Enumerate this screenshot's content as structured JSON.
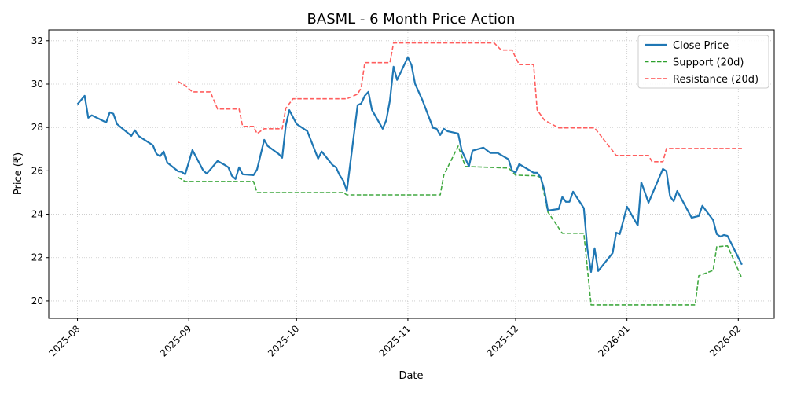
{
  "chart_data": {
    "type": "line",
    "title": "BASML - 6 Month Price Action",
    "xlabel": "Date",
    "ylabel": "Price (₹)",
    "xlim": [
      "2025-07-24",
      "2026-02-11"
    ],
    "ylim": [
      19.2,
      32.5
    ],
    "grid": true,
    "legend_position": "top-right",
    "x_ticks": [
      "2025-08",
      "2025-09",
      "2025-10",
      "2025-11",
      "2025-12",
      "2026-01",
      "2026-02"
    ],
    "y_ticks": [
      20,
      22,
      24,
      26,
      28,
      30,
      32
    ],
    "series": [
      {
        "name": "Close Price",
        "color": "#1f77b4",
        "style": "solid",
        "points": [
          [
            "2025-08-01",
            29.07
          ],
          [
            "2025-08-03",
            29.46
          ],
          [
            "2025-08-04",
            28.45
          ],
          [
            "2025-08-05",
            28.56
          ],
          [
            "2025-08-09",
            28.23
          ],
          [
            "2025-08-10",
            28.7
          ],
          [
            "2025-08-11",
            28.63
          ],
          [
            "2025-08-12",
            28.16
          ],
          [
            "2025-08-16",
            27.61
          ],
          [
            "2025-08-17",
            27.87
          ],
          [
            "2025-08-18",
            27.61
          ],
          [
            "2025-08-22",
            27.18
          ],
          [
            "2025-08-23",
            26.78
          ],
          [
            "2025-08-24",
            26.67
          ],
          [
            "2025-08-25",
            26.89
          ],
          [
            "2025-08-26",
            26.38
          ],
          [
            "2025-08-29",
            25.98
          ],
          [
            "2025-08-30",
            25.95
          ],
          [
            "2025-08-31",
            25.84
          ],
          [
            "2025-09-02",
            26.96
          ],
          [
            "2025-09-05",
            26.02
          ],
          [
            "2025-09-06",
            25.87
          ],
          [
            "2025-09-07",
            26.06
          ],
          [
            "2025-09-09",
            26.45
          ],
          [
            "2025-09-11",
            26.27
          ],
          [
            "2025-09-12",
            26.16
          ],
          [
            "2025-09-13",
            25.77
          ],
          [
            "2025-09-14",
            25.62
          ],
          [
            "2025-09-15",
            26.16
          ],
          [
            "2025-09-16",
            25.84
          ],
          [
            "2025-09-19",
            25.8
          ],
          [
            "2025-09-20",
            26.06
          ],
          [
            "2025-09-22",
            27.43
          ],
          [
            "2025-09-23",
            27.14
          ],
          [
            "2025-09-26",
            26.78
          ],
          [
            "2025-09-27",
            26.6
          ],
          [
            "2025-09-28",
            28.09
          ],
          [
            "2025-09-29",
            28.8
          ],
          [
            "2025-10-01",
            28.16
          ],
          [
            "2025-10-04",
            27.83
          ],
          [
            "2025-10-07",
            26.56
          ],
          [
            "2025-10-08",
            26.89
          ],
          [
            "2025-10-11",
            26.27
          ],
          [
            "2025-10-12",
            26.16
          ],
          [
            "2025-10-13",
            25.8
          ],
          [
            "2025-10-14",
            25.55
          ],
          [
            "2025-10-15",
            25.08
          ],
          [
            "2025-10-18",
            29.03
          ],
          [
            "2025-10-19",
            29.1
          ],
          [
            "2025-10-20",
            29.46
          ],
          [
            "2025-10-21",
            29.64
          ],
          [
            "2025-10-22",
            28.81
          ],
          [
            "2025-10-25",
            27.94
          ],
          [
            "2025-10-26",
            28.34
          ],
          [
            "2025-10-27",
            29.25
          ],
          [
            "2025-10-28",
            30.8
          ],
          [
            "2025-10-29",
            30.19
          ],
          [
            "2025-11-01",
            31.24
          ],
          [
            "2025-11-02",
            30.88
          ],
          [
            "2025-11-03",
            30.01
          ],
          [
            "2025-11-05",
            29.28
          ],
          [
            "2025-11-08",
            27.98
          ],
          [
            "2025-11-09",
            27.94
          ],
          [
            "2025-11-10",
            27.65
          ],
          [
            "2025-11-11",
            27.94
          ],
          [
            "2025-11-12",
            27.83
          ],
          [
            "2025-11-15",
            27.72
          ],
          [
            "2025-11-16",
            26.93
          ],
          [
            "2025-11-18",
            26.2
          ],
          [
            "2025-11-19",
            26.93
          ],
          [
            "2025-11-22",
            27.07
          ],
          [
            "2025-11-24",
            26.82
          ],
          [
            "2025-11-26",
            26.82
          ],
          [
            "2025-11-29",
            26.53
          ],
          [
            "2025-11-30",
            26.02
          ],
          [
            "2025-12-01",
            25.91
          ],
          [
            "2025-12-02",
            26.31
          ],
          [
            "2025-12-06",
            25.91
          ],
          [
            "2025-12-07",
            25.91
          ],
          [
            "2025-12-08",
            25.69
          ],
          [
            "2025-12-09",
            25.11
          ],
          [
            "2025-12-10",
            24.17
          ],
          [
            "2025-12-13",
            24.24
          ],
          [
            "2025-12-14",
            24.79
          ],
          [
            "2025-12-15",
            24.57
          ],
          [
            "2025-12-16",
            24.57
          ],
          [
            "2025-12-17",
            25.04
          ],
          [
            "2025-12-20",
            24.28
          ],
          [
            "2025-12-21",
            22.39
          ],
          [
            "2025-12-22",
            21.34
          ],
          [
            "2025-12-23",
            22.43
          ],
          [
            "2025-12-24",
            21.38
          ],
          [
            "2025-12-28",
            22.21
          ],
          [
            "2025-12-29",
            23.15
          ],
          [
            "2025-12-30",
            23.08
          ],
          [
            "2026-01-01",
            24.35
          ],
          [
            "2026-01-04",
            23.48
          ],
          [
            "2026-01-05",
            25.47
          ],
          [
            "2026-01-07",
            24.53
          ],
          [
            "2026-01-11",
            26.09
          ],
          [
            "2026-01-12",
            25.98
          ],
          [
            "2026-01-13",
            24.82
          ],
          [
            "2026-01-14",
            24.6
          ],
          [
            "2026-01-15",
            25.07
          ],
          [
            "2026-01-19",
            23.84
          ],
          [
            "2026-01-21",
            23.92
          ],
          [
            "2026-01-22",
            24.39
          ],
          [
            "2026-01-25",
            23.73
          ],
          [
            "2026-01-26",
            23.08
          ],
          [
            "2026-01-27",
            22.97
          ],
          [
            "2026-01-28",
            23.04
          ],
          [
            "2026-01-29",
            23.0
          ],
          [
            "2026-02-02",
            21.67
          ]
        ]
      },
      {
        "name": "Support (20d)",
        "color": "#2ca02c",
        "style": "dashed",
        "points": [
          [
            "2025-08-29",
            25.7
          ],
          [
            "2025-08-31",
            25.51
          ],
          [
            "2025-09-19",
            25.51
          ],
          [
            "2025-09-20",
            25.0
          ],
          [
            "2025-10-14",
            25.0
          ],
          [
            "2025-10-15",
            24.89
          ],
          [
            "2025-11-10",
            24.89
          ],
          [
            "2025-11-11",
            25.8
          ],
          [
            "2025-11-15",
            27.14
          ],
          [
            "2025-11-17",
            26.2
          ],
          [
            "2025-11-29",
            26.13
          ],
          [
            "2025-12-01",
            25.8
          ],
          [
            "2025-12-07",
            25.77
          ],
          [
            "2025-12-08",
            25.69
          ],
          [
            "2025-12-10",
            24.1
          ],
          [
            "2025-12-14",
            23.12
          ],
          [
            "2025-12-20",
            23.12
          ],
          [
            "2025-12-22",
            19.82
          ],
          [
            "2026-01-20",
            19.82
          ],
          [
            "2026-01-21",
            21.16
          ],
          [
            "2026-01-25",
            21.41
          ],
          [
            "2026-01-26",
            22.5
          ],
          [
            "2026-01-29",
            22.54
          ],
          [
            "2026-02-02",
            21.05
          ]
        ]
      },
      {
        "name": "Resistance (20d)",
        "color": "#ff4d4d",
        "style": "dashed",
        "points": [
          [
            "2025-08-29",
            30.12
          ],
          [
            "2025-08-31",
            29.93
          ],
          [
            "2025-09-02",
            29.64
          ],
          [
            "2025-09-07",
            29.64
          ],
          [
            "2025-09-09",
            28.85
          ],
          [
            "2025-09-15",
            28.85
          ],
          [
            "2025-09-16",
            28.05
          ],
          [
            "2025-09-19",
            28.05
          ],
          [
            "2025-09-20",
            27.72
          ],
          [
            "2025-09-22",
            27.94
          ],
          [
            "2025-09-27",
            27.94
          ],
          [
            "2025-09-28",
            28.88
          ],
          [
            "2025-09-30",
            29.32
          ],
          [
            "2025-10-15",
            29.32
          ],
          [
            "2025-10-18",
            29.54
          ],
          [
            "2025-10-19",
            29.83
          ],
          [
            "2025-10-20",
            30.99
          ],
          [
            "2025-10-27",
            30.99
          ],
          [
            "2025-10-28",
            31.9
          ],
          [
            "2025-11-25",
            31.9
          ],
          [
            "2025-11-27",
            31.57
          ],
          [
            "2025-11-30",
            31.57
          ],
          [
            "2025-12-02",
            30.9
          ],
          [
            "2025-12-06",
            30.9
          ],
          [
            "2025-12-07",
            28.81
          ],
          [
            "2025-12-09",
            28.34
          ],
          [
            "2025-12-13",
            27.98
          ],
          [
            "2025-12-23",
            27.98
          ],
          [
            "2025-12-29",
            26.71
          ],
          [
            "2026-01-07",
            26.71
          ],
          [
            "2026-01-08",
            26.42
          ],
          [
            "2026-01-11",
            26.42
          ],
          [
            "2026-01-12",
            27.03
          ],
          [
            "2026-02-02",
            27.03
          ]
        ]
      }
    ]
  }
}
